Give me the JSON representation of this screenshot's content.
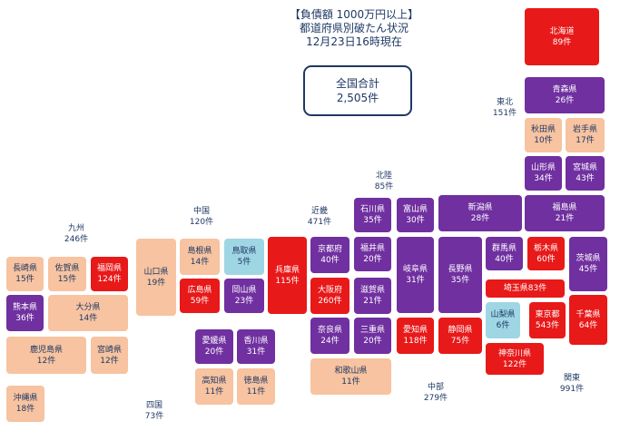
{
  "header": {
    "line1": "【負債額 1000万円以上】",
    "line2": "都道府県別破たん状況",
    "line3": "12月23日16時現在"
  },
  "total": {
    "label": "全国合計",
    "value": "2,505件"
  },
  "colors": {
    "lt10": "#f7c3a0",
    "lt30": "#9fd6e4",
    "lt60": "#7030a0",
    "gte60": "#e81919",
    "text": "#1f3864"
  },
  "regions": {
    "hokkaido_tohoku": {
      "name": "東北",
      "count": "151件"
    },
    "hokuriku": {
      "name": "北陸",
      "count": "85件"
    },
    "kinki": {
      "name": "近畿",
      "count": "471件"
    },
    "chugoku": {
      "name": "中国",
      "count": "120件"
    },
    "kyushu": {
      "name": "九州",
      "count": "246件"
    },
    "shikoku": {
      "name": "四国",
      "count": "73件"
    },
    "chubu": {
      "name": "中部",
      "count": "279件"
    },
    "kanto": {
      "name": "関東",
      "count": "991件"
    }
  },
  "prefectures": {
    "hokkaido": {
      "name": "北海道",
      "count": "89件"
    },
    "aomori": {
      "name": "青森県",
      "count": "26件"
    },
    "akita": {
      "name": "秋田県",
      "count": "10件"
    },
    "iwate": {
      "name": "岩手県",
      "count": "17件"
    },
    "yamagata": {
      "name": "山形県",
      "count": "34件"
    },
    "miyagi": {
      "name": "宮城県",
      "count": "43件"
    },
    "fukushima": {
      "name": "福島県",
      "count": "21件"
    },
    "niigata": {
      "name": "新潟県",
      "count": "28件"
    },
    "ishikawa": {
      "name": "石川県",
      "count": "35件"
    },
    "toyama": {
      "name": "富山県",
      "count": "30件"
    },
    "fukui": {
      "name": "福井県",
      "count": "20件"
    },
    "gifu": {
      "name": "岐阜県",
      "count": "31件"
    },
    "nagano": {
      "name": "長野県",
      "count": "35件"
    },
    "gunma": {
      "name": "群馬県",
      "count": "40件"
    },
    "tochigi": {
      "name": "栃木県",
      "count": "60件"
    },
    "ibaraki": {
      "name": "茨城県",
      "count": "45件"
    },
    "saitama": {
      "name": "埼玉県83件"
    },
    "yamanashi": {
      "name": "山梨県",
      "count": "6件"
    },
    "tokyo": {
      "name": "東京都",
      "count": "543件"
    },
    "chiba": {
      "name": "千葉県",
      "count": "64件"
    },
    "kanagawa": {
      "name": "神奈川県",
      "count": "122件"
    },
    "shizuoka": {
      "name": "静岡県",
      "count": "75件"
    },
    "aichi": {
      "name": "愛知県",
      "count": "118件"
    },
    "mie": {
      "name": "三重県",
      "count": "20件"
    },
    "shiga": {
      "name": "滋賀県",
      "count": "21件"
    },
    "kyoto": {
      "name": "京都府",
      "count": "40件"
    },
    "osaka": {
      "name": "大阪府",
      "count": "260件"
    },
    "nara": {
      "name": "奈良県",
      "count": "24件"
    },
    "wakayama": {
      "name": "和歌山県",
      "count": "11件"
    },
    "hyogo": {
      "name": "兵庫県",
      "count": "115件"
    },
    "tottori": {
      "name": "鳥取県",
      "count": "5件"
    },
    "shimane": {
      "name": "島根県",
      "count": "14件"
    },
    "okayama": {
      "name": "岡山県",
      "count": "23件"
    },
    "hiroshima": {
      "name": "広島県",
      "count": "59件"
    },
    "yamaguchi": {
      "name": "山口県",
      "count": "19件"
    },
    "ehime": {
      "name": "愛媛県",
      "count": "20件"
    },
    "kagawa": {
      "name": "香川県",
      "count": "31件"
    },
    "kochi": {
      "name": "高知県",
      "count": "11件"
    },
    "tokushima": {
      "name": "徳島県",
      "count": "11件"
    },
    "fukuoka": {
      "name": "福岡県",
      "count": "124件"
    },
    "saga": {
      "name": "佐賀県",
      "count": "15件"
    },
    "nagasaki": {
      "name": "長崎県",
      "count": "15件"
    },
    "oita": {
      "name": "大分県",
      "count": "14件"
    },
    "kumamoto": {
      "name": "熊本県",
      "count": "36件"
    },
    "miyazaki": {
      "name": "宮崎県",
      "count": "12件"
    },
    "kagoshima": {
      "name": "鹿児島県",
      "count": "12件"
    },
    "okinawa": {
      "name": "沖縄県",
      "count": "18件"
    }
  }
}
